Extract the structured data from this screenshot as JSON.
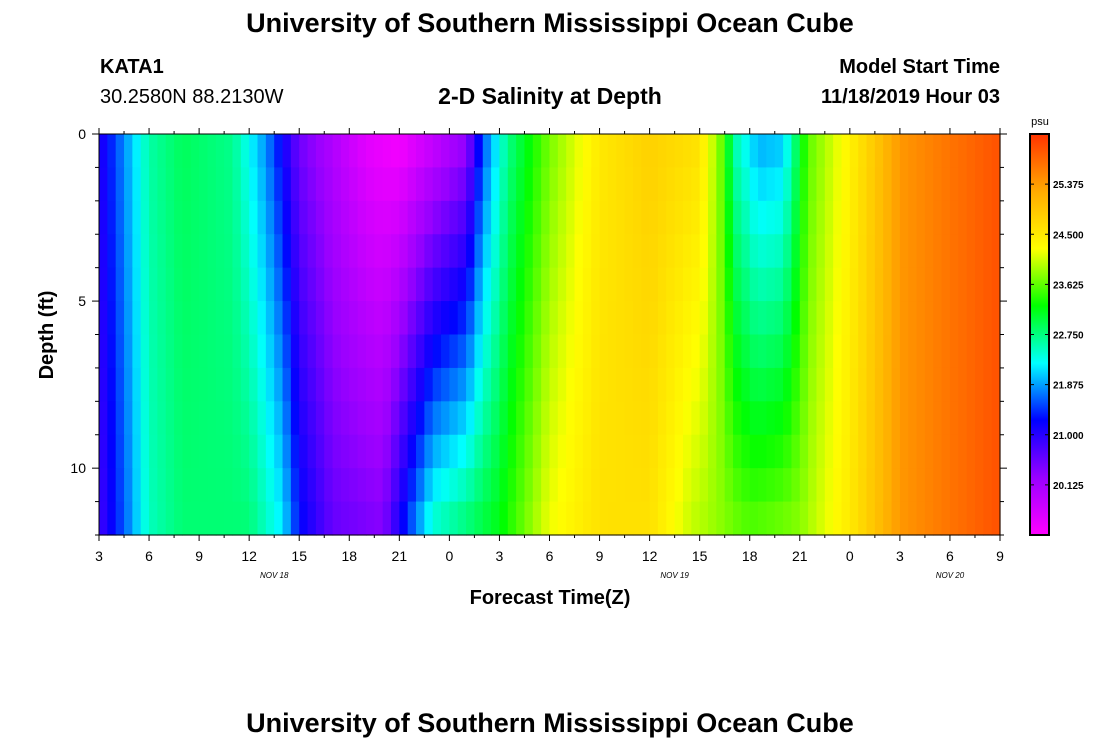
{
  "header": {
    "title": "University of Southern Mississippi Ocean Cube",
    "station_id": "KATA1",
    "coords": "30.2580N 88.2130W",
    "plot_title": "2-D Salinity at Depth",
    "model_start_label": "Model Start Time",
    "model_start_value": "11/18/2019 Hour 03"
  },
  "footer": {
    "title": "University of Southern Mississippi Ocean Cube"
  },
  "chart_data": {
    "type": "heatmap",
    "title": "2-D Salinity at Depth",
    "xlabel": "Forecast Time(Z)",
    "ylabel": "Depth (ft)",
    "x_tick_labels": [
      "3",
      "6",
      "9",
      "12",
      "15",
      "18",
      "21",
      "0",
      "3",
      "6",
      "9",
      "12",
      "15",
      "18",
      "21",
      "0",
      "3",
      "6",
      "9"
    ],
    "x_date_labels": [
      "NOV 18",
      "NOV 19",
      "NOV 20"
    ],
    "x_range_hours": [
      0,
      54
    ],
    "y_ticks": [
      0,
      5,
      10
    ],
    "y_range_ft": [
      0,
      12
    ],
    "y_inverted": true,
    "colorbar": {
      "unit": "psu",
      "min": 19.25,
      "max": 26.25,
      "labels": [
        "25.375",
        "24.500",
        "23.625",
        "22.750",
        "21.875",
        "21.000",
        "20.125"
      ],
      "colors": [
        "#ff00ff",
        "#9900ff",
        "#0000ff",
        "#00ffff",
        "#00ff00",
        "#ffff00",
        "#ffaa00",
        "#ff3300"
      ]
    },
    "salinity_surface_psu": [
      {
        "hour": 0,
        "value": 21.0
      },
      {
        "hour": 1.5,
        "value": 21.8
      },
      {
        "hour": 3,
        "value": 22.6
      },
      {
        "hour": 5,
        "value": 22.9
      },
      {
        "hour": 8,
        "value": 22.7
      },
      {
        "hour": 10,
        "value": 21.8
      },
      {
        "hour": 12,
        "value": 20.5
      },
      {
        "hour": 16,
        "value": 19.5
      },
      {
        "hour": 18,
        "value": 19.3
      },
      {
        "hour": 22,
        "value": 20.2
      },
      {
        "hour": 23,
        "value": 21.5
      },
      {
        "hour": 24.5,
        "value": 22.7
      },
      {
        "hour": 27,
        "value": 23.7
      },
      {
        "hour": 30,
        "value": 24.5
      },
      {
        "hour": 33,
        "value": 24.8
      },
      {
        "hour": 36,
        "value": 24.6
      },
      {
        "hour": 37.5,
        "value": 23.5
      },
      {
        "hour": 38,
        "value": 22.6
      },
      {
        "hour": 39.5,
        "value": 21.9
      },
      {
        "hour": 41,
        "value": 22.0
      },
      {
        "hour": 42.5,
        "value": 23.6
      },
      {
        "hour": 45,
        "value": 24.4
      },
      {
        "hour": 48,
        "value": 25.4
      },
      {
        "hour": 54,
        "value": 26.0
      }
    ],
    "salinity_bottom_psu": [
      {
        "hour": 0,
        "value": 20.8
      },
      {
        "hour": 1.5,
        "value": 21.6
      },
      {
        "hour": 3,
        "value": 22.5
      },
      {
        "hour": 5,
        "value": 22.8
      },
      {
        "hour": 9,
        "value": 22.8
      },
      {
        "hour": 11,
        "value": 22.2
      },
      {
        "hour": 12,
        "value": 21.3
      },
      {
        "hour": 14,
        "value": 20.6
      },
      {
        "hour": 17,
        "value": 20.4
      },
      {
        "hour": 18.5,
        "value": 21.5
      },
      {
        "hour": 20,
        "value": 22.5
      },
      {
        "hour": 24,
        "value": 23.2
      },
      {
        "hour": 27,
        "value": 24.2
      },
      {
        "hour": 30,
        "value": 24.6
      },
      {
        "hour": 33,
        "value": 24.6
      },
      {
        "hour": 35.5,
        "value": 24.0
      },
      {
        "hour": 39,
        "value": 23.6
      },
      {
        "hour": 42,
        "value": 23.8
      },
      {
        "hour": 45,
        "value": 24.5
      },
      {
        "hour": 48,
        "value": 25.4
      },
      {
        "hour": 54,
        "value": 26.0
      }
    ]
  }
}
